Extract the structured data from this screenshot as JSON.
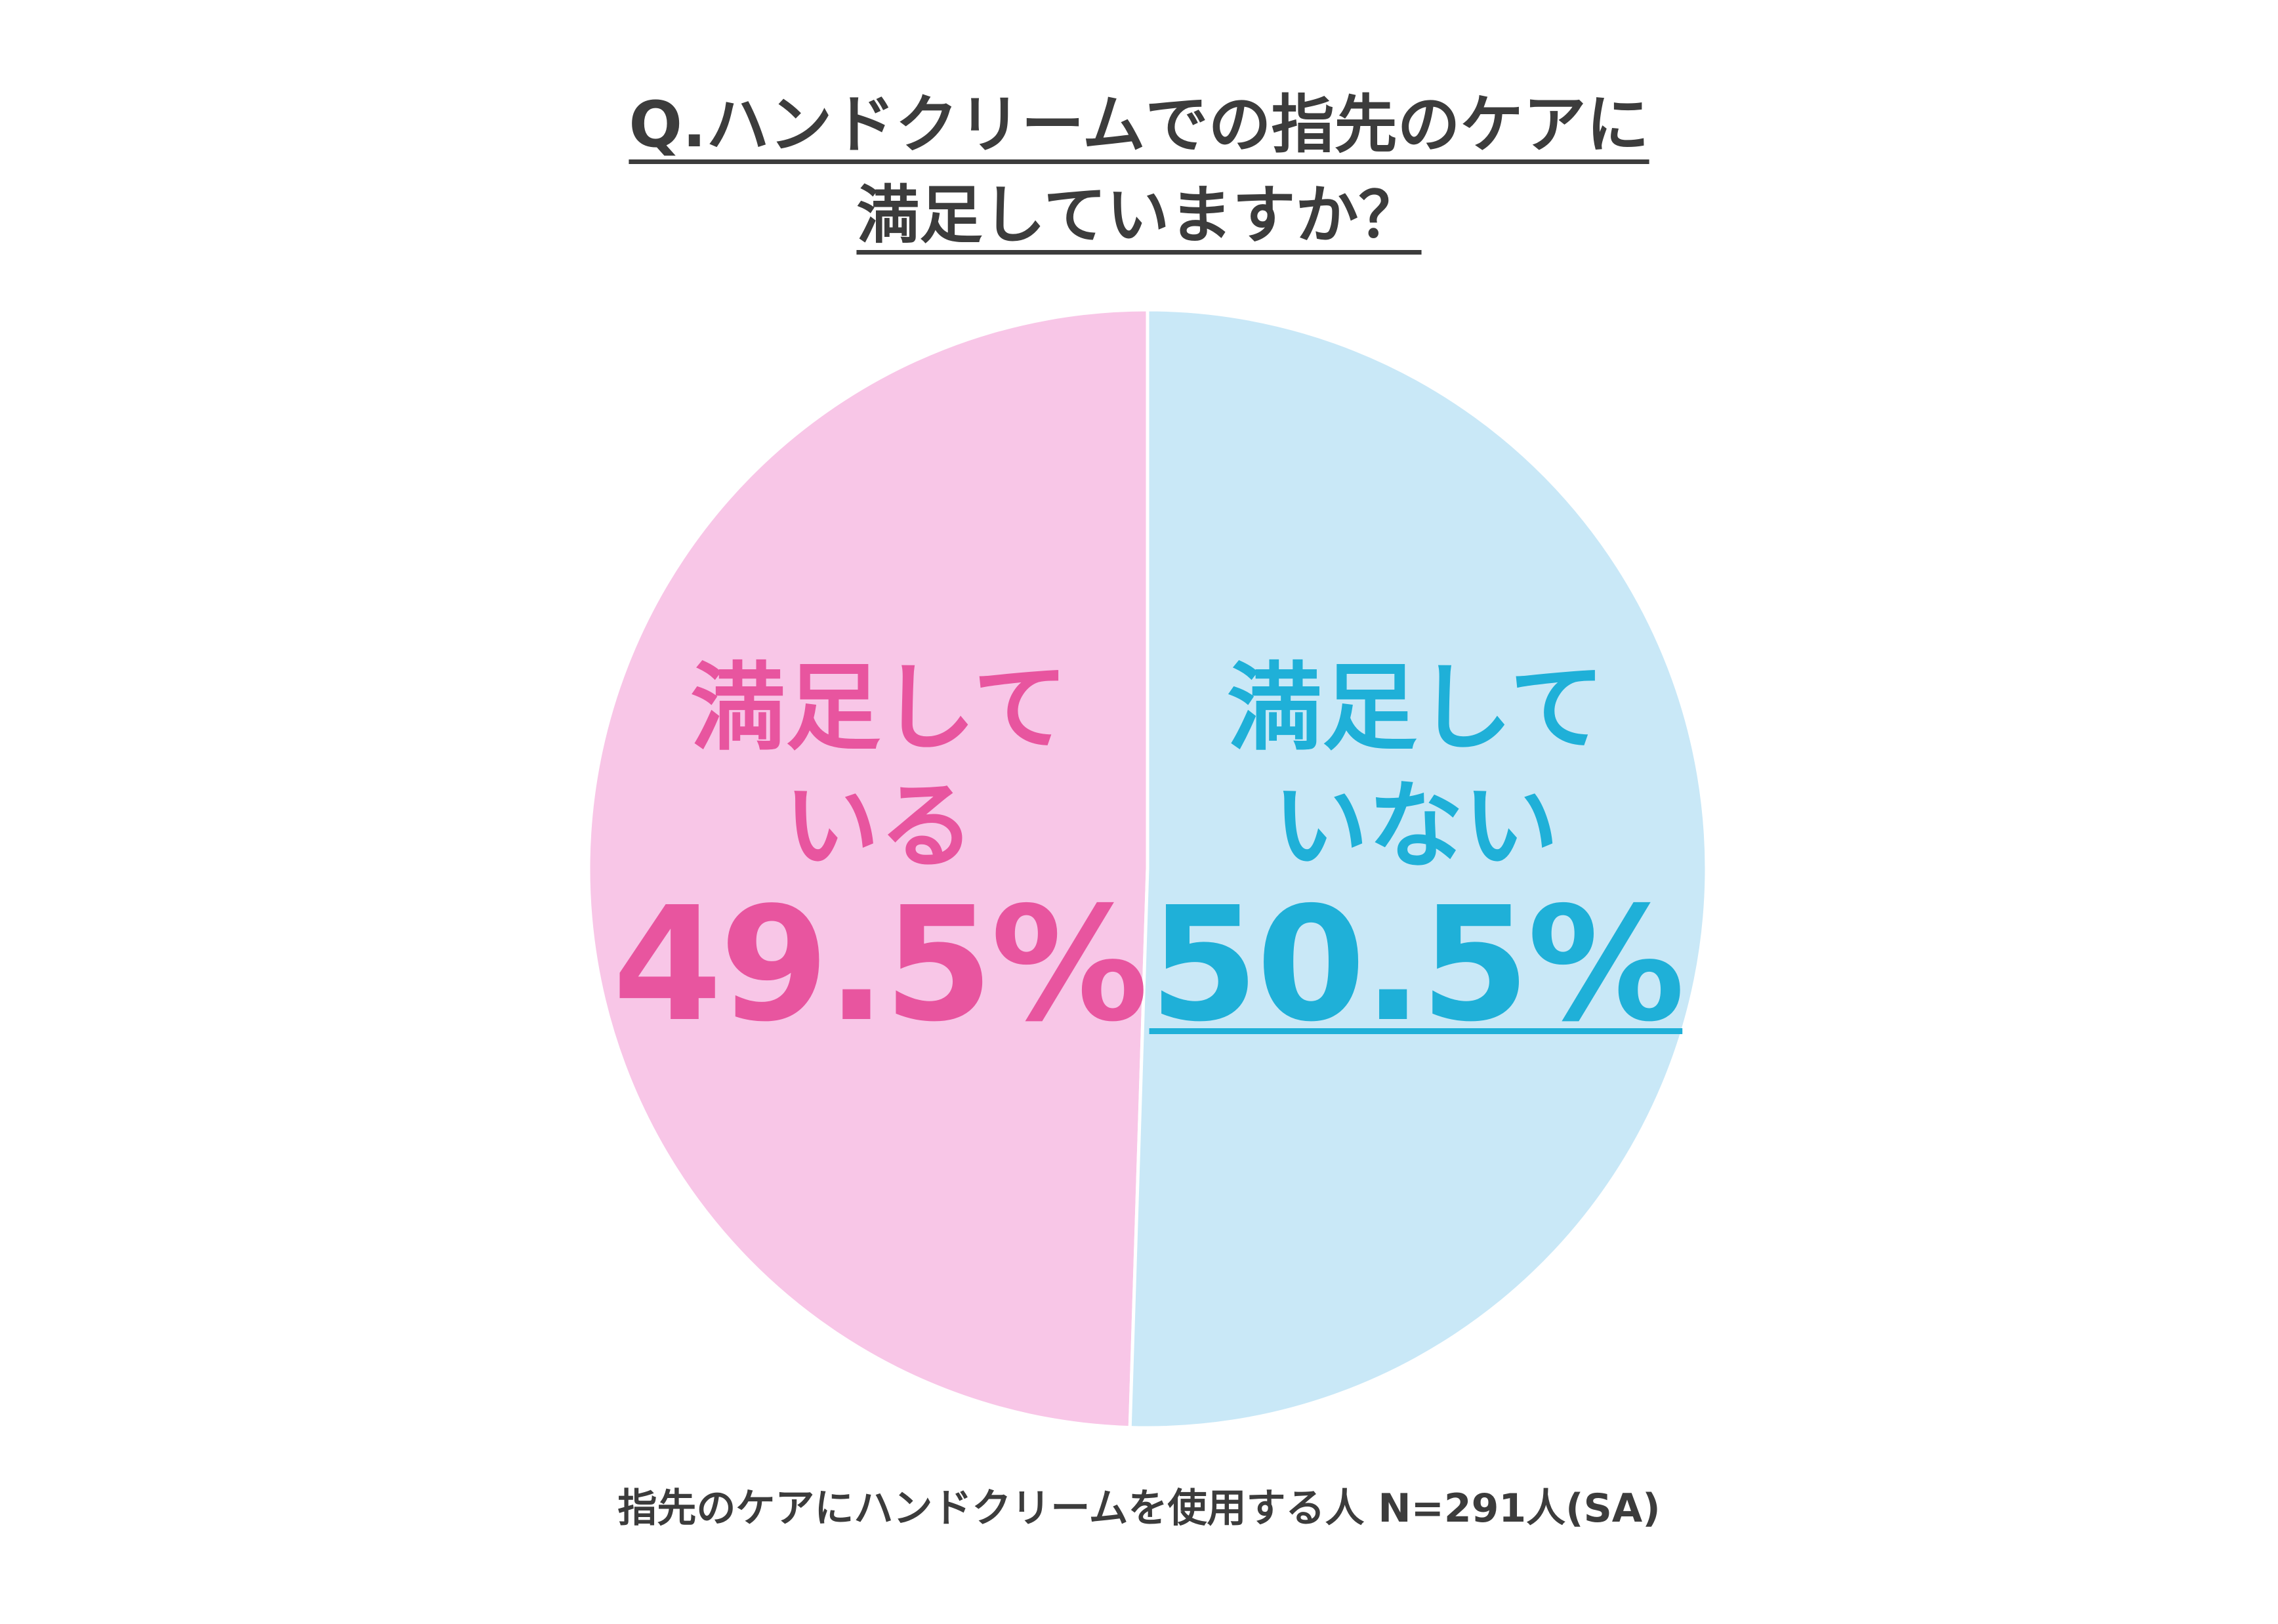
{
  "chart_data": {
    "type": "pie",
    "title": [
      "Q.ハンドクリームでの指先のケアに",
      "満足していますか？"
    ],
    "categories": [
      "満足している",
      "満足していない"
    ],
    "values": [
      49.5,
      50.5
    ],
    "value_labels": [
      "49.5%",
      "50.5%"
    ],
    "colors": [
      "#f8c6e7",
      "#c9e8f7"
    ],
    "label_colors": [
      "#e8559f",
      "#1fb0d8"
    ],
    "note": "指先のケアにハンドクリームを使用する人 N=291人(SA)"
  }
}
